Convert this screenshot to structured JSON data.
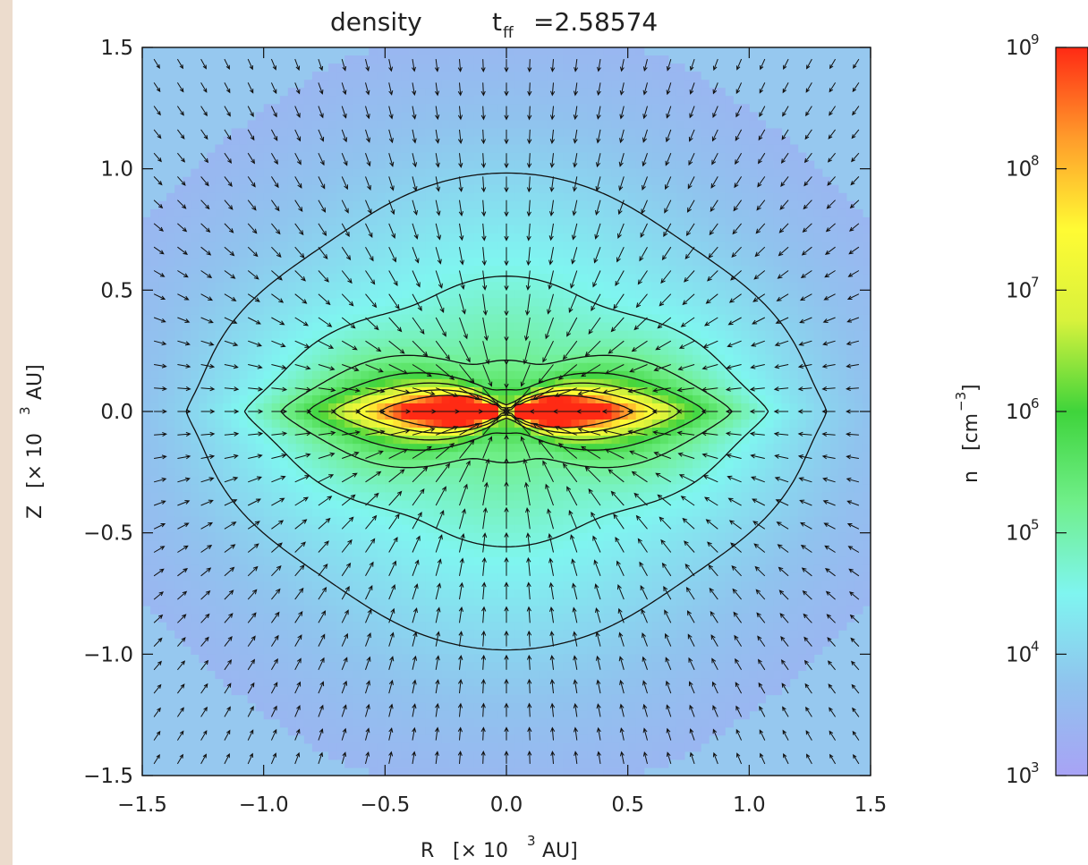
{
  "chart_data": {
    "type": "heatmap",
    "title": {
      "left": "density",
      "t_main": "t",
      "t_sub": "ff",
      "t_value": "=2.58574"
    },
    "xlabel": {
      "var": "R",
      "unit_open": "[× 10",
      "exp": "3",
      "unit_close": " AU]"
    },
    "ylabel": {
      "var": "Z",
      "unit_open": "[× 10",
      "exp": "3",
      "unit_close": " AU]"
    },
    "xlim": [
      -1.5,
      1.5
    ],
    "ylim": [
      -1.5,
      1.5
    ],
    "x_ticks": [
      {
        "v": -1.5,
        "label": "−1.5"
      },
      {
        "v": -1.0,
        "label": "−1.0"
      },
      {
        "v": -0.5,
        "label": "−0.5"
      },
      {
        "v": 0.0,
        "label": "0.0"
      },
      {
        "v": 0.5,
        "label": "0.5"
      },
      {
        "v": 1.0,
        "label": "1.0"
      },
      {
        "v": 1.5,
        "label": "1.5"
      }
    ],
    "y_ticks": [
      {
        "v": 1.5,
        "label": "1.5"
      },
      {
        "v": 1.0,
        "label": "1.0"
      },
      {
        "v": 0.5,
        "label": "0.5"
      },
      {
        "v": 0.0,
        "label": "0.0"
      },
      {
        "v": -0.5,
        "label": "−0.5"
      },
      {
        "v": -1.0,
        "label": "−1.0"
      },
      {
        "v": -1.5,
        "label": "−1.5"
      }
    ],
    "colorbar": {
      "label_var": "n",
      "label_unit_open": "[cm",
      "label_exp": "−3",
      "label_unit_close": "]",
      "scale": "log",
      "range_log10": [
        3,
        9
      ],
      "ticks": [
        {
          "base": "10",
          "exp": "9",
          "v": 9
        },
        {
          "base": "10",
          "exp": "8",
          "v": 8
        },
        {
          "base": "10",
          "exp": "7",
          "v": 7
        },
        {
          "base": "10",
          "exp": "6",
          "v": 6
        },
        {
          "base": "10",
          "exp": "5",
          "v": 5
        },
        {
          "base": "10",
          "exp": "4",
          "v": 4
        },
        {
          "base": "10",
          "exp": "3",
          "v": 3
        }
      ],
      "colors": [
        "#a8a3f5",
        "#90c3ee",
        "#7ff5f0",
        "#70ef8a",
        "#3fd43b",
        "#d8f23c",
        "#fffb34",
        "#ff9c2b",
        "#ff2a14"
      ]
    },
    "contour_levels_log10": [
      4.0,
      4.6,
      5.2,
      5.8,
      6.5,
      7.3,
      8.2
    ],
    "background_color": "#96c8ef",
    "velocity_field": "inflow toward center, arrows converging on origin"
  }
}
